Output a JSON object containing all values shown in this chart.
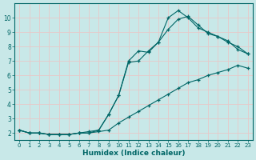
{
  "xlabel": "Humidex (Indice chaleur)",
  "background_color": "#c8e8e8",
  "grid_color": "#e8c8c8",
  "line_color": "#006666",
  "xlim": [
    -0.5,
    23.5
  ],
  "ylim": [
    1.5,
    11.0
  ],
  "xticks": [
    0,
    1,
    2,
    3,
    4,
    5,
    6,
    7,
    8,
    9,
    10,
    11,
    12,
    13,
    14,
    15,
    16,
    17,
    18,
    19,
    20,
    21,
    22,
    23
  ],
  "yticks": [
    2,
    3,
    4,
    5,
    6,
    7,
    8,
    9,
    10
  ],
  "line1_x": [
    0,
    1,
    2,
    3,
    4,
    5,
    6,
    7,
    8,
    9,
    10,
    11,
    12,
    13,
    14,
    15,
    16,
    17,
    18,
    19,
    20,
    21,
    22,
    23
  ],
  "line1_y": [
    2.2,
    2.0,
    2.0,
    1.9,
    1.9,
    1.9,
    2.0,
    2.0,
    2.1,
    2.2,
    2.7,
    3.1,
    3.5,
    3.9,
    4.3,
    4.7,
    5.1,
    5.5,
    5.7,
    6.0,
    6.2,
    6.4,
    6.7,
    6.5
  ],
  "line2_x": [
    0,
    1,
    2,
    3,
    4,
    5,
    6,
    7,
    8,
    9,
    10,
    11,
    12,
    13,
    14,
    15,
    16,
    17,
    18,
    19,
    20,
    21,
    22,
    23
  ],
  "line2_y": [
    2.2,
    2.0,
    2.0,
    1.9,
    1.9,
    1.9,
    2.0,
    2.0,
    2.2,
    3.3,
    4.6,
    6.9,
    7.0,
    7.7,
    8.3,
    9.2,
    9.9,
    10.1,
    9.5,
    8.9,
    8.7,
    8.4,
    7.8,
    7.5
  ],
  "line3_x": [
    0,
    1,
    2,
    3,
    4,
    5,
    6,
    7,
    8,
    9,
    10,
    11,
    12,
    13,
    14,
    15,
    16,
    17,
    18,
    19,
    20,
    21,
    22,
    23
  ],
  "line3_y": [
    2.2,
    2.0,
    2.0,
    1.9,
    1.9,
    1.9,
    2.0,
    2.1,
    2.2,
    3.3,
    4.6,
    7.0,
    7.7,
    7.6,
    8.3,
    10.0,
    10.5,
    10.0,
    9.3,
    9.0,
    8.7,
    8.3,
    8.0,
    7.5
  ]
}
